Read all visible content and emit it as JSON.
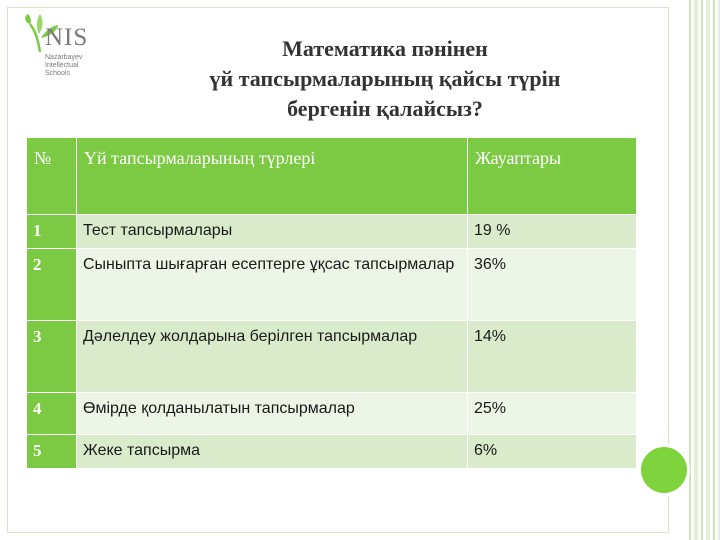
{
  "logo": {
    "name": "NIS",
    "subtitle_lines": [
      "Nazarbayev",
      "Intellectual",
      "Schools"
    ]
  },
  "title": {
    "lines": [
      "Математика пәнінен",
      "үй тапсырмаларының қайсы түрін",
      "бергенін қалайсыз?"
    ]
  },
  "table": {
    "headers": [
      "№",
      "Үй тапсырмаларының түрлері",
      "Жауаптары"
    ],
    "rows": [
      {
        "num": "1",
        "type": "Тест тапсырмалары",
        "answer": "19 %"
      },
      {
        "num": "2",
        "type": "Сыныпта шығарған есептерге ұқсас тапсырмалар",
        "answer": "36%"
      },
      {
        "num": "3",
        "type": "Дәлелдеу жолдарына  берілген тапсырмалар",
        "answer": "14%"
      },
      {
        "num": "4",
        "type": "Өмірде қолданылатын тапсырмалар",
        "answer": "25%"
      },
      {
        "num": "5",
        "type": "Жеке тапсырма",
        "answer": "6%"
      }
    ]
  },
  "colors": {
    "header_green": "#7cc943",
    "row_light": "#d9ebcb",
    "row_lighter": "#edf5e6",
    "accent_dot": "#7fd33c"
  }
}
